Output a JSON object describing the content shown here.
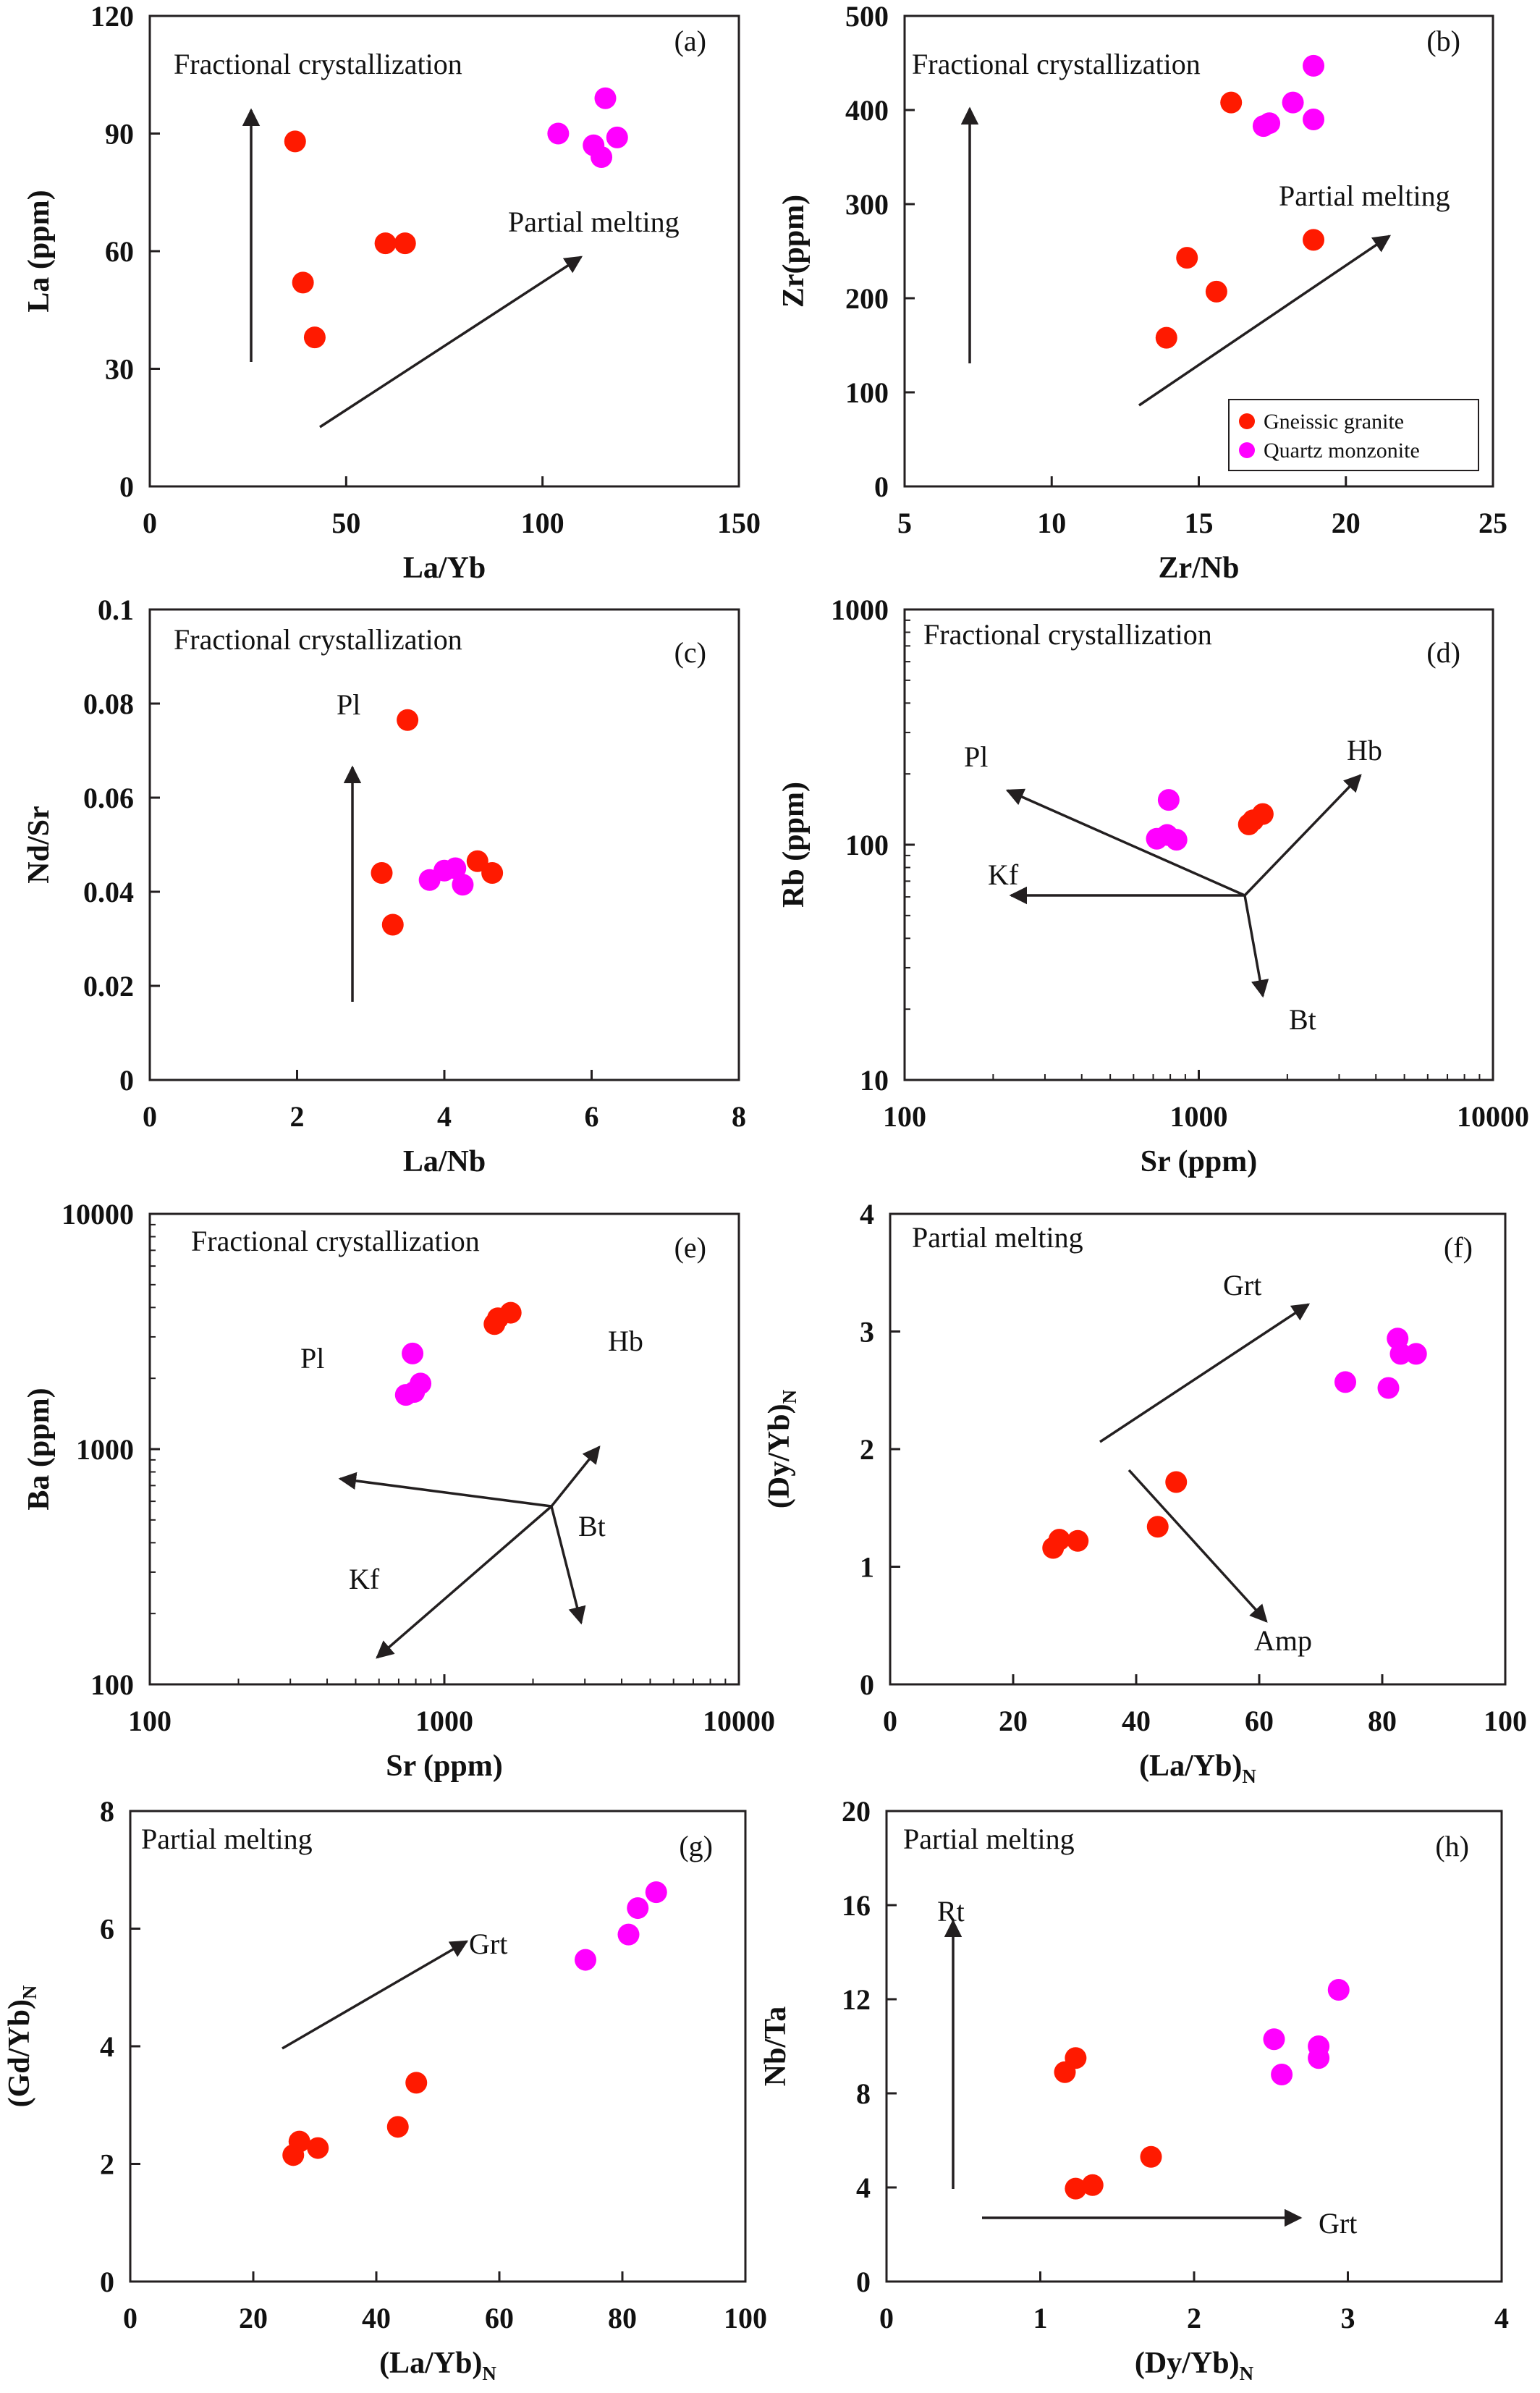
{
  "colors": {
    "gneissic": "#ff1a00",
    "quartz": "#ff00ff",
    "ink": "#231f20"
  },
  "legend": {
    "items": [
      "Gneissic granite",
      "Quartz monzonite"
    ]
  },
  "chart_data": [
    {
      "id": "a",
      "panel_label": "(a)",
      "type": "scatter",
      "xlabel": "La/Yb",
      "ylabel": "La (ppm)",
      "xlabel_sub": "",
      "ylabel_sub": "",
      "xscale": "linear",
      "yscale": "linear",
      "xlim": [
        0,
        150
      ],
      "ylim": [
        0,
        120
      ],
      "xticks": [
        "0",
        "50",
        "100",
        "150"
      ],
      "yticks": [
        "0",
        "30",
        "60",
        "90",
        "120"
      ],
      "annotations": [
        "Fractional crystallization",
        "Partial melting"
      ],
      "series": [
        {
          "name": "Gneissic granite",
          "points": [
            [
              37,
              88
            ],
            [
              39,
              52
            ],
            [
              42,
              38
            ],
            [
              60,
              62
            ],
            [
              65,
              62
            ]
          ]
        },
        {
          "name": "Quartz monzonite",
          "points": [
            [
              104,
              90
            ],
            [
              113,
              87
            ],
            [
              115,
              84
            ],
            [
              116,
              99
            ],
            [
              119,
              89
            ]
          ]
        }
      ]
    },
    {
      "id": "b",
      "panel_label": "(b)",
      "type": "scatter",
      "xlabel": "Zr/Nb",
      "ylabel": "Zr(ppm)",
      "xlabel_sub": "",
      "ylabel_sub": "",
      "xscale": "linear",
      "yscale": "linear",
      "xlim": [
        5,
        25
      ],
      "ylim": [
        0,
        500
      ],
      "xticks": [
        "5",
        "10",
        "15",
        "20",
        "25"
      ],
      "yticks": [
        "0",
        "100",
        "200",
        "300",
        "400",
        "500"
      ],
      "annotations": [
        "Fractional crystallization",
        "Partial melting"
      ],
      "legend_position": "bottom-right",
      "series": [
        {
          "name": "Gneissic granite",
          "points": [
            [
              13.9,
              158
            ],
            [
              14.6,
              243
            ],
            [
              15.6,
              207
            ],
            [
              16.1,
              408
            ],
            [
              18.9,
              262
            ]
          ]
        },
        {
          "name": "Quartz monzonite",
          "points": [
            [
              17.2,
              383
            ],
            [
              17.4,
              386
            ],
            [
              18.2,
              408
            ],
            [
              18.9,
              447
            ],
            [
              18.9,
              390
            ]
          ]
        }
      ]
    },
    {
      "id": "c",
      "panel_label": "(c)",
      "type": "scatter",
      "xlabel": "La/Nb",
      "ylabel": "Nd/Sr",
      "xlabel_sub": "",
      "ylabel_sub": "",
      "xscale": "linear",
      "yscale": "linear",
      "xlim": [
        0,
        8
      ],
      "ylim": [
        0,
        0.1
      ],
      "xticks": [
        "0",
        "2",
        "4",
        "6",
        "8"
      ],
      "yticks": [
        "0",
        "0.02",
        "0.04",
        "0.06",
        "0.08",
        "0.1"
      ],
      "annotations": [
        "Fractional crystallization",
        "Pl"
      ],
      "series": [
        {
          "name": "Gneissic granite",
          "points": [
            [
              3.15,
              0.044
            ],
            [
              3.3,
              0.033
            ],
            [
              3.5,
              0.0765
            ],
            [
              4.45,
              0.0465
            ],
            [
              4.65,
              0.044
            ]
          ]
        },
        {
          "name": "Quartz monzonite",
          "points": [
            [
              3.8,
              0.0425
            ],
            [
              4.0,
              0.0445
            ],
            [
              4.15,
              0.045
            ],
            [
              4.25,
              0.0415
            ]
          ]
        }
      ]
    },
    {
      "id": "d",
      "panel_label": "(d)",
      "type": "scatter",
      "xlabel": "Sr (ppm)",
      "ylabel": "Rb (ppm)",
      "xlabel_sub": "",
      "ylabel_sub": "",
      "xscale": "log",
      "yscale": "log",
      "xlim": [
        100,
        10000
      ],
      "ylim": [
        10,
        1000
      ],
      "xticks": [
        "100",
        "1000",
        "10000"
      ],
      "yticks": [
        "10",
        "100",
        "1000"
      ],
      "annotations": [
        "Fractional crystallization",
        "Pl",
        "Hb",
        "Kf",
        "Bt"
      ],
      "series": [
        {
          "name": "Gneissic granite",
          "points": [
            [
              1480,
              122
            ],
            [
              1530,
              127
            ],
            [
              1650,
              135
            ]
          ]
        },
        {
          "name": "Quartz monzonite",
          "points": [
            [
              720,
              106
            ],
            [
              780,
              110
            ],
            [
              840,
              105
            ],
            [
              790,
              155
            ]
          ]
        }
      ]
    },
    {
      "id": "e",
      "panel_label": "(e)",
      "type": "scatter",
      "xlabel": "Sr (ppm)",
      "ylabel": "Ba (ppm)",
      "xlabel_sub": "",
      "ylabel_sub": "",
      "xscale": "log",
      "yscale": "log",
      "xlim": [
        100,
        10000
      ],
      "ylim": [
        100,
        10000
      ],
      "xticks": [
        "100",
        "1000",
        "10000"
      ],
      "yticks": [
        "100",
        "1000",
        "10000"
      ],
      "annotations": [
        "Fractional crystallization",
        "Pl",
        "Hb",
        "Bt",
        "Kf"
      ],
      "series": [
        {
          "name": "Gneissic granite",
          "points": [
            [
              1480,
              3400
            ],
            [
              1520,
              3600
            ],
            [
              1680,
              3800
            ]
          ]
        },
        {
          "name": "Quartz monzonite",
          "points": [
            [
              740,
              1700
            ],
            [
              790,
              1750
            ],
            [
              830,
              1900
            ],
            [
              780,
              2550
            ]
          ]
        }
      ]
    },
    {
      "id": "f",
      "panel_label": "(f)",
      "type": "scatter",
      "xlabel": "(La/Yb)",
      "ylabel": "(Dy/Yb)",
      "xlabel_sub": "N",
      "ylabel_sub": "N",
      "xscale": "linear",
      "yscale": "linear",
      "xlim": [
        0,
        100
      ],
      "ylim": [
        0,
        4
      ],
      "xticks": [
        "0",
        "20",
        "40",
        "60",
        "80",
        "100"
      ],
      "yticks": [
        "0",
        "1",
        "2",
        "3",
        "4"
      ],
      "annotations": [
        "Partial melting",
        "Grt",
        "Amp"
      ],
      "series": [
        {
          "name": "Gneissic granite",
          "points": [
            [
              26.5,
              1.16
            ],
            [
              27.5,
              1.23
            ],
            [
              30.5,
              1.22
            ],
            [
              43.5,
              1.34
            ],
            [
              46.5,
              1.72
            ]
          ]
        },
        {
          "name": "Quartz monzonite",
          "points": [
            [
              74,
              2.57
            ],
            [
              81,
              2.52
            ],
            [
              82.5,
              2.94
            ],
            [
              83,
              2.81
            ],
            [
              85.5,
              2.81
            ]
          ]
        }
      ]
    },
    {
      "id": "g",
      "panel_label": "(g)",
      "type": "scatter",
      "xlabel": "(La/Yb)",
      "ylabel": "(Gd/Yb)",
      "xlabel_sub": "N",
      "ylabel_sub": "N",
      "xscale": "linear",
      "yscale": "linear",
      "xlim": [
        0,
        100
      ],
      "ylim": [
        0,
        8
      ],
      "xticks": [
        "0",
        "20",
        "40",
        "60",
        "80",
        "100"
      ],
      "yticks": [
        "0",
        "2",
        "4",
        "6",
        "8"
      ],
      "annotations": [
        "Partial melting",
        "Grt"
      ],
      "series": [
        {
          "name": "Gneissic granite",
          "points": [
            [
              26.5,
              2.15
            ],
            [
              27.5,
              2.38
            ],
            [
              30.5,
              2.27
            ],
            [
              43.5,
              2.63
            ],
            [
              46.5,
              3.38
            ]
          ]
        },
        {
          "name": "Quartz monzonite",
          "points": [
            [
              74,
              5.47
            ],
            [
              81,
              5.9
            ],
            [
              82.5,
              6.35
            ],
            [
              85.5,
              6.62
            ]
          ]
        }
      ]
    },
    {
      "id": "h",
      "panel_label": "(h)",
      "type": "scatter",
      "xlabel": "(Dy/Yb)",
      "ylabel": "Nb/Ta",
      "xlabel_sub": "N",
      "ylabel_sub": "",
      "xscale": "linear",
      "yscale": "linear",
      "xlim": [
        0,
        4
      ],
      "ylim": [
        0,
        20
      ],
      "xticks": [
        "0",
        "1",
        "2",
        "3",
        "4"
      ],
      "yticks": [
        "0",
        "4",
        "8",
        "12",
        "16",
        "20"
      ],
      "annotations": [
        "Partial melting",
        "Rt",
        "Grt"
      ],
      "series": [
        {
          "name": "Gneissic granite",
          "points": [
            [
              1.16,
              8.9
            ],
            [
              1.23,
              9.5
            ],
            [
              1.23,
              3.95
            ],
            [
              1.34,
              4.1
            ],
            [
              1.72,
              5.3
            ]
          ]
        },
        {
          "name": "Quartz monzonite",
          "points": [
            [
              2.52,
              10.3
            ],
            [
              2.57,
              8.8
            ],
            [
              2.81,
              10.0
            ],
            [
              2.81,
              9.5
            ],
            [
              2.94,
              12.4
            ]
          ]
        }
      ]
    }
  ]
}
